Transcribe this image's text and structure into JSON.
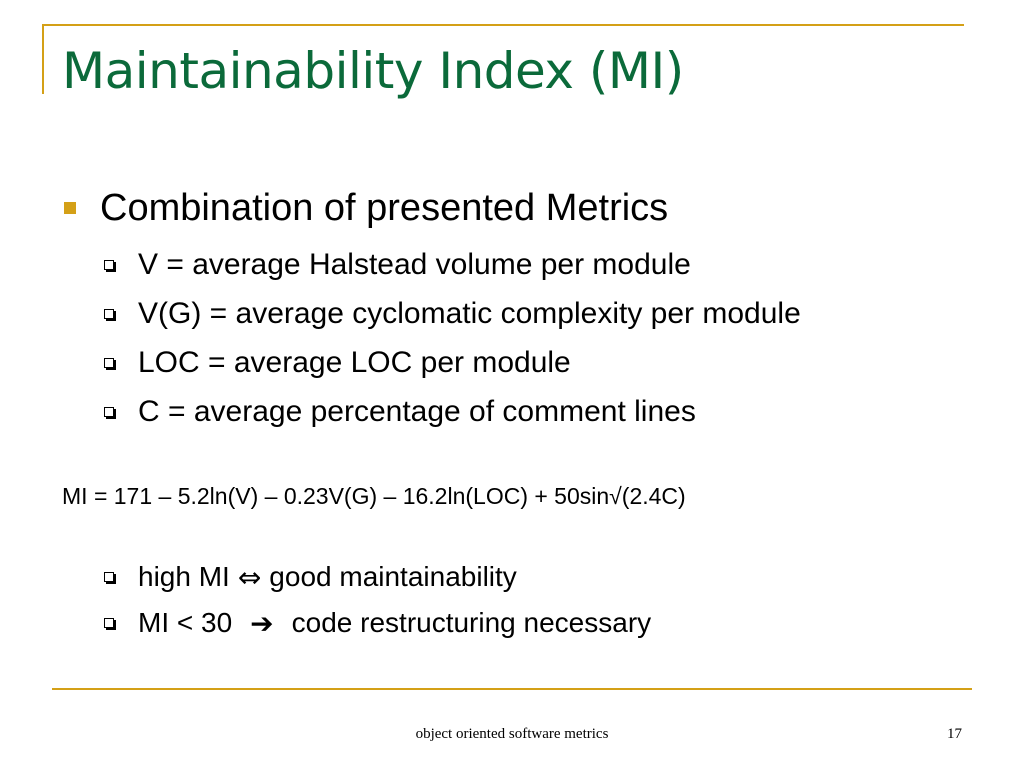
{
  "slide": {
    "title": "Maintainability Index (MI)",
    "main_bullet": "Combination of presented Metrics",
    "sub_bullets": [
      "V = average Halstead volume per module",
      "V(G) = average cyclomatic complexity per module",
      "LOC = average LOC per module",
      "C = average percentage of comment lines"
    ],
    "formula": "MI = 171 – 5.2ln(V) – 0.23V(G) – 16.2ln(LOC) +  50sin√(2.4C)",
    "conclusions": [
      {
        "left": "high MI",
        "symbol": "⇔",
        "symbol_icon": "double-arrow-icon",
        "right": "good maintainability"
      },
      {
        "left": "MI < 30",
        "symbol": "➔",
        "symbol_icon": "right-arrow-icon",
        "right": "code restructuring necessary"
      }
    ]
  },
  "footer": {
    "text": "object oriented software metrics",
    "page_number": "17"
  },
  "colors": {
    "title": "#0b6a3a",
    "accent": "#d4a017",
    "text": "#000000",
    "background": "#ffffff"
  }
}
